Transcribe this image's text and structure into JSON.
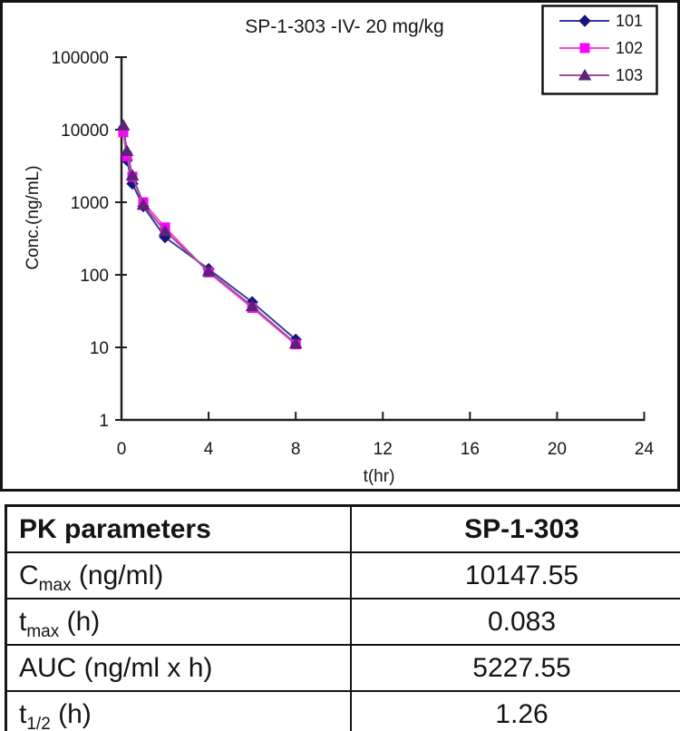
{
  "chart_data": [
    {
      "type": "line",
      "title": "SP-1-303 -IV- 20 mg/kg",
      "xlabel": "t(hr)",
      "ylabel": "Conc.(ng/mL)",
      "x_scale": "linear",
      "y_scale": "log",
      "xlim": [
        0,
        24
      ],
      "ylim": [
        1,
        100000
      ],
      "x_ticks": [
        0,
        4,
        8,
        12,
        16,
        20,
        24
      ],
      "y_ticks": [
        1,
        10,
        100,
        1000,
        10000,
        100000
      ],
      "grid": false,
      "legend_position": "top-right",
      "x": [
        0.083,
        0.25,
        0.5,
        1,
        2,
        4,
        6,
        8
      ],
      "series": [
        {
          "name": "101",
          "marker": "diamond",
          "line_color": "#3b3b9e",
          "marker_color": "#15157d",
          "values": [
            10000,
            3800,
            1800,
            880,
            330,
            120,
            42,
            12.8
          ]
        },
        {
          "name": "102",
          "marker": "square",
          "line_color": "#ff44cc",
          "marker_color": "#ff00ff",
          "values": [
            9200,
            4300,
            2250,
            1000,
            450,
            108,
            35,
            11.0
          ]
        },
        {
          "name": "103",
          "marker": "triangle",
          "line_color": "#9b4f9b",
          "marker_color": "#5e2277",
          "values": [
            11500,
            5100,
            2350,
            920,
            400,
            112,
            37,
            11.3
          ]
        }
      ]
    },
    {
      "type": "table",
      "columns": [
        "PK parameters",
        "SP-1-303"
      ],
      "rows": [
        {
          "parameter_base": "C",
          "parameter_sub": "max",
          "parameter_rest": " (ng/ml)",
          "value": "10147.55"
        },
        {
          "parameter_base": "t",
          "parameter_sub": "max",
          "parameter_rest": " (h)",
          "value": "0.083"
        },
        {
          "parameter_base": "AUC",
          "parameter_sub": "",
          "parameter_rest": " (ng/ml x h)",
          "value": "5227.55"
        },
        {
          "parameter_base": "t",
          "parameter_sub": "1/2",
          "parameter_rest": " (h)",
          "value": "1.26"
        }
      ]
    }
  ],
  "colors": {
    "frame": "#141414",
    "axis": "#1f1f1f",
    "text": "#161616"
  }
}
